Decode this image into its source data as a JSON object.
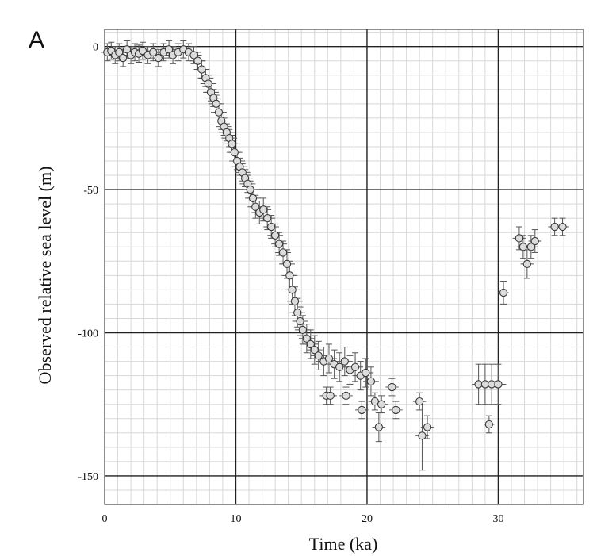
{
  "panel_label": "A",
  "chart_data": {
    "type": "scatter",
    "title": "",
    "xlabel": "Time (ka)",
    "ylabel": "Observed relative sea level (m)",
    "xlim": [
      0,
      36.5
    ],
    "ylim": [
      -160,
      6
    ],
    "x_ticks": [
      0,
      10,
      20,
      30
    ],
    "y_ticks": [
      0,
      -50,
      -100,
      -150
    ],
    "x_tick_labels": [
      "0",
      "10",
      "20",
      "30"
    ],
    "y_tick_labels": [
      "0",
      "-50",
      "-100",
      "-150"
    ],
    "grid": true,
    "minor_grid_step": {
      "x": 1,
      "y": 5
    },
    "error_bars": true,
    "series": [
      {
        "points": [
          {
            "x": 0.2,
            "y": -2,
            "ex": 0.5,
            "ey": 3
          },
          {
            "x": 0.5,
            "y": -1.5,
            "ex": 0.5,
            "ey": 3
          },
          {
            "x": 0.8,
            "y": -3,
            "ex": 0.5,
            "ey": 3
          },
          {
            "x": 1.1,
            "y": -2,
            "ex": 0.5,
            "ey": 3
          },
          {
            "x": 1.4,
            "y": -4,
            "ex": 0.6,
            "ey": 3
          },
          {
            "x": 1.7,
            "y": -1,
            "ex": 0.6,
            "ey": 3
          },
          {
            "x": 2.0,
            "y": -3,
            "ex": 0.6,
            "ey": 3
          },
          {
            "x": 2.3,
            "y": -2,
            "ex": 0.6,
            "ey": 3
          },
          {
            "x": 2.6,
            "y": -2.5,
            "ex": 0.6,
            "ey": 3
          },
          {
            "x": 2.9,
            "y": -1.5,
            "ex": 0.6,
            "ey": 3
          },
          {
            "x": 3.3,
            "y": -3,
            "ex": 0.6,
            "ey": 3
          },
          {
            "x": 3.7,
            "y": -2,
            "ex": 0.6,
            "ey": 3
          },
          {
            "x": 4.1,
            "y": -4,
            "ex": 0.6,
            "ey": 3
          },
          {
            "x": 4.5,
            "y": -2,
            "ex": 0.6,
            "ey": 3
          },
          {
            "x": 4.9,
            "y": -1,
            "ex": 0.6,
            "ey": 3
          },
          {
            "x": 5.2,
            "y": -3,
            "ex": 0.6,
            "ey": 3
          },
          {
            "x": 5.6,
            "y": -2,
            "ex": 0.6,
            "ey": 3
          },
          {
            "x": 6.0,
            "y": -1,
            "ex": 0.6,
            "ey": 3
          },
          {
            "x": 6.4,
            "y": -2,
            "ex": 0.6,
            "ey": 3
          },
          {
            "x": 6.8,
            "y": -3,
            "ex": 0.6,
            "ey": 3
          },
          {
            "x": 7.1,
            "y": -5,
            "ex": 0.6,
            "ey": 3
          },
          {
            "x": 7.4,
            "y": -8,
            "ex": 0.6,
            "ey": 3
          },
          {
            "x": 7.7,
            "y": -11,
            "ex": 0.6,
            "ey": 3
          },
          {
            "x": 7.9,
            "y": -13,
            "ex": 0.6,
            "ey": 3
          },
          {
            "x": 8.1,
            "y": -16,
            "ex": 0.6,
            "ey": 3
          },
          {
            "x": 8.3,
            "y": -18,
            "ex": 0.6,
            "ey": 3
          },
          {
            "x": 8.5,
            "y": -20,
            "ex": 0.6,
            "ey": 3
          },
          {
            "x": 8.7,
            "y": -23,
            "ex": 0.6,
            "ey": 3
          },
          {
            "x": 8.9,
            "y": -26,
            "ex": 0.6,
            "ey": 3
          },
          {
            "x": 9.1,
            "y": -28,
            "ex": 0.6,
            "ey": 3
          },
          {
            "x": 9.3,
            "y": -30,
            "ex": 0.6,
            "ey": 3
          },
          {
            "x": 9.5,
            "y": -32,
            "ex": 0.6,
            "ey": 3
          },
          {
            "x": 9.7,
            "y": -34,
            "ex": 0.6,
            "ey": 3
          },
          {
            "x": 9.9,
            "y": -37,
            "ex": 0.6,
            "ey": 3
          },
          {
            "x": 10.1,
            "y": -40,
            "ex": 0.6,
            "ey": 3
          },
          {
            "x": 10.3,
            "y": -42,
            "ex": 0.6,
            "ey": 3
          },
          {
            "x": 10.5,
            "y": -44,
            "ex": 0.6,
            "ey": 3
          },
          {
            "x": 10.7,
            "y": -46,
            "ex": 0.6,
            "ey": 3
          },
          {
            "x": 10.9,
            "y": -48,
            "ex": 0.6,
            "ey": 3
          },
          {
            "x": 11.1,
            "y": -50,
            "ex": 0.6,
            "ey": 3
          },
          {
            "x": 11.3,
            "y": -53,
            "ex": 0.6,
            "ey": 3
          },
          {
            "x": 11.5,
            "y": -56,
            "ex": 0.6,
            "ey": 4
          },
          {
            "x": 11.8,
            "y": -58,
            "ex": 0.6,
            "ey": 4
          },
          {
            "x": 12.1,
            "y": -57,
            "ex": 0.6,
            "ey": 4
          },
          {
            "x": 12.4,
            "y": -60,
            "ex": 0.6,
            "ey": 4
          },
          {
            "x": 12.7,
            "y": -63,
            "ex": 0.6,
            "ey": 4
          },
          {
            "x": 13.0,
            "y": -66,
            "ex": 0.6,
            "ey": 4
          },
          {
            "x": 13.3,
            "y": -69,
            "ex": 0.6,
            "ey": 4
          },
          {
            "x": 13.6,
            "y": -72,
            "ex": 0.6,
            "ey": 4
          },
          {
            "x": 13.9,
            "y": -76,
            "ex": 0.6,
            "ey": 5
          },
          {
            "x": 14.1,
            "y": -80,
            "ex": 0.6,
            "ey": 5
          },
          {
            "x": 14.3,
            "y": -85,
            "ex": 0.6,
            "ey": 5
          },
          {
            "x": 14.5,
            "y": -89,
            "ex": 0.6,
            "ey": 5
          },
          {
            "x": 14.7,
            "y": -93,
            "ex": 0.6,
            "ey": 5
          },
          {
            "x": 14.9,
            "y": -96,
            "ex": 0.6,
            "ey": 5
          },
          {
            "x": 15.1,
            "y": -99,
            "ex": 0.6,
            "ey": 5
          },
          {
            "x": 15.4,
            "y": -102,
            "ex": 0.6,
            "ey": 5
          },
          {
            "x": 15.7,
            "y": -104,
            "ex": 0.6,
            "ey": 5
          },
          {
            "x": 16.0,
            "y": -106,
            "ex": 0.6,
            "ey": 5
          },
          {
            "x": 16.3,
            "y": -108,
            "ex": 0.6,
            "ey": 5
          },
          {
            "x": 16.7,
            "y": -110,
            "ex": 0.6,
            "ey": 5
          },
          {
            "x": 17.1,
            "y": -109,
            "ex": 0.6,
            "ey": 5
          },
          {
            "x": 17.5,
            "y": -111,
            "ex": 0.6,
            "ey": 5
          },
          {
            "x": 17.9,
            "y": -112,
            "ex": 0.6,
            "ey": 5
          },
          {
            "x": 18.3,
            "y": -110,
            "ex": 0.6,
            "ey": 5
          },
          {
            "x": 18.7,
            "y": -113,
            "ex": 0.6,
            "ey": 5
          },
          {
            "x": 19.1,
            "y": -112,
            "ex": 0.6,
            "ey": 5
          },
          {
            "x": 19.5,
            "y": -115,
            "ex": 0.6,
            "ey": 5
          },
          {
            "x": 19.9,
            "y": -114,
            "ex": 0.6,
            "ey": 5
          },
          {
            "x": 20.3,
            "y": -117,
            "ex": 0.6,
            "ey": 5
          },
          {
            "x": 16.9,
            "y": -122,
            "ex": 0.5,
            "ey": 3
          },
          {
            "x": 17.2,
            "y": -122,
            "ex": 0.5,
            "ey": 3
          },
          {
            "x": 18.4,
            "y": -122,
            "ex": 0.5,
            "ey": 3
          },
          {
            "x": 19.6,
            "y": -127,
            "ex": 0.5,
            "ey": 3
          },
          {
            "x": 20.6,
            "y": -124,
            "ex": 0.5,
            "ey": 3
          },
          {
            "x": 21.1,
            "y": -125,
            "ex": 0.5,
            "ey": 3
          },
          {
            "x": 21.9,
            "y": -119,
            "ex": 0.5,
            "ey": 3
          },
          {
            "x": 22.2,
            "y": -127,
            "ex": 0.5,
            "ey": 3
          },
          {
            "x": 20.9,
            "y": -133,
            "ex": 0.5,
            "ey": 5
          },
          {
            "x": 24.0,
            "y": -124,
            "ex": 0.5,
            "ey": 3
          },
          {
            "x": 24.2,
            "y": -136,
            "ex": 0.5,
            "ey": 12
          },
          {
            "x": 24.6,
            "y": -133,
            "ex": 0.5,
            "ey": 4
          },
          {
            "x": 28.5,
            "y": -118,
            "ex": 0.5,
            "ey": 7
          },
          {
            "x": 29.0,
            "y": -118,
            "ex": 0.6,
            "ey": 7
          },
          {
            "x": 29.5,
            "y": -118,
            "ex": 0.6,
            "ey": 7
          },
          {
            "x": 30.0,
            "y": -118,
            "ex": 0.6,
            "ey": 7
          },
          {
            "x": 29.3,
            "y": -132,
            "ex": 0.4,
            "ey": 3
          },
          {
            "x": 30.4,
            "y": -86,
            "ex": 0.4,
            "ey": 4
          },
          {
            "x": 31.6,
            "y": -67,
            "ex": 0.5,
            "ey": 4
          },
          {
            "x": 31.9,
            "y": -70,
            "ex": 0.5,
            "ey": 4
          },
          {
            "x": 32.2,
            "y": -76,
            "ex": 0.5,
            "ey": 5
          },
          {
            "x": 32.5,
            "y": -70,
            "ex": 0.5,
            "ey": 4
          },
          {
            "x": 32.8,
            "y": -68,
            "ex": 0.5,
            "ey": 4
          },
          {
            "x": 34.3,
            "y": -63,
            "ex": 0.5,
            "ey": 3
          },
          {
            "x": 34.9,
            "y": -63,
            "ex": 0.5,
            "ey": 3
          }
        ]
      }
    ]
  }
}
